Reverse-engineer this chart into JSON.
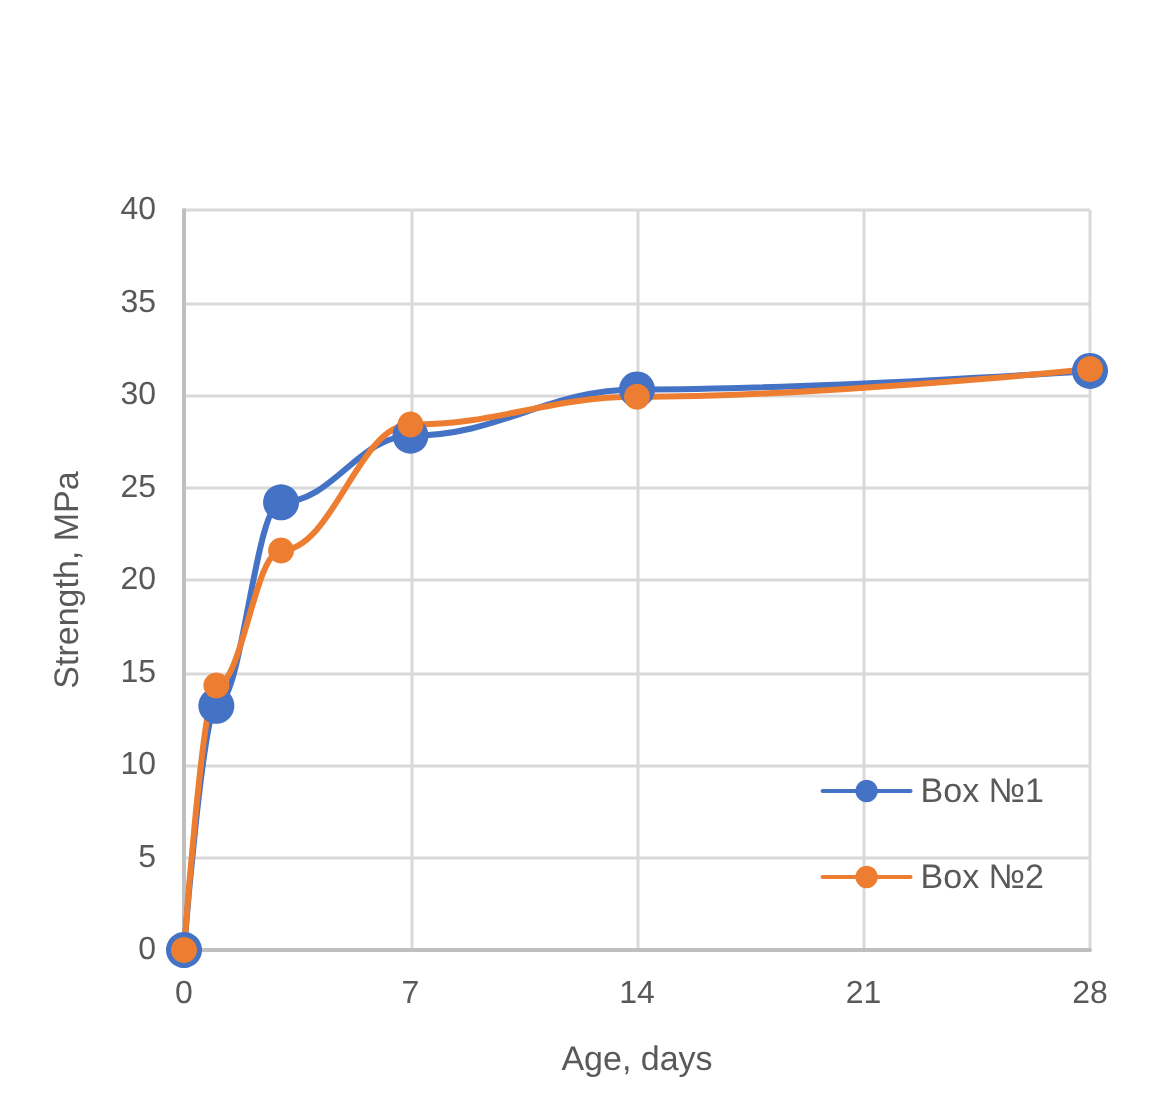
{
  "chart_data": {
    "type": "line",
    "xlabel": "Age, days",
    "ylabel": "Strength, MPa",
    "x": [
      0,
      1,
      3,
      7,
      14,
      28
    ],
    "series": [
      {
        "name": "Box №1",
        "color": "#4472c4",
        "values": [
          0,
          13.2,
          24.2,
          27.8,
          30.3,
          31.3
        ]
      },
      {
        "name": "Box №2",
        "color": "#ed7d31",
        "values": [
          0,
          14.3,
          21.6,
          28.4,
          29.9,
          31.4
        ]
      }
    ],
    "xlim": [
      0,
      28
    ],
    "xticks": [
      0,
      7,
      14,
      21,
      28
    ],
    "ylim": [
      0,
      40
    ],
    "yticks": [
      0,
      5,
      10,
      15,
      20,
      25,
      30,
      35,
      40
    ],
    "grid": true,
    "legend": "bottom right",
    "marker": "circle",
    "line_style": "solid"
  }
}
